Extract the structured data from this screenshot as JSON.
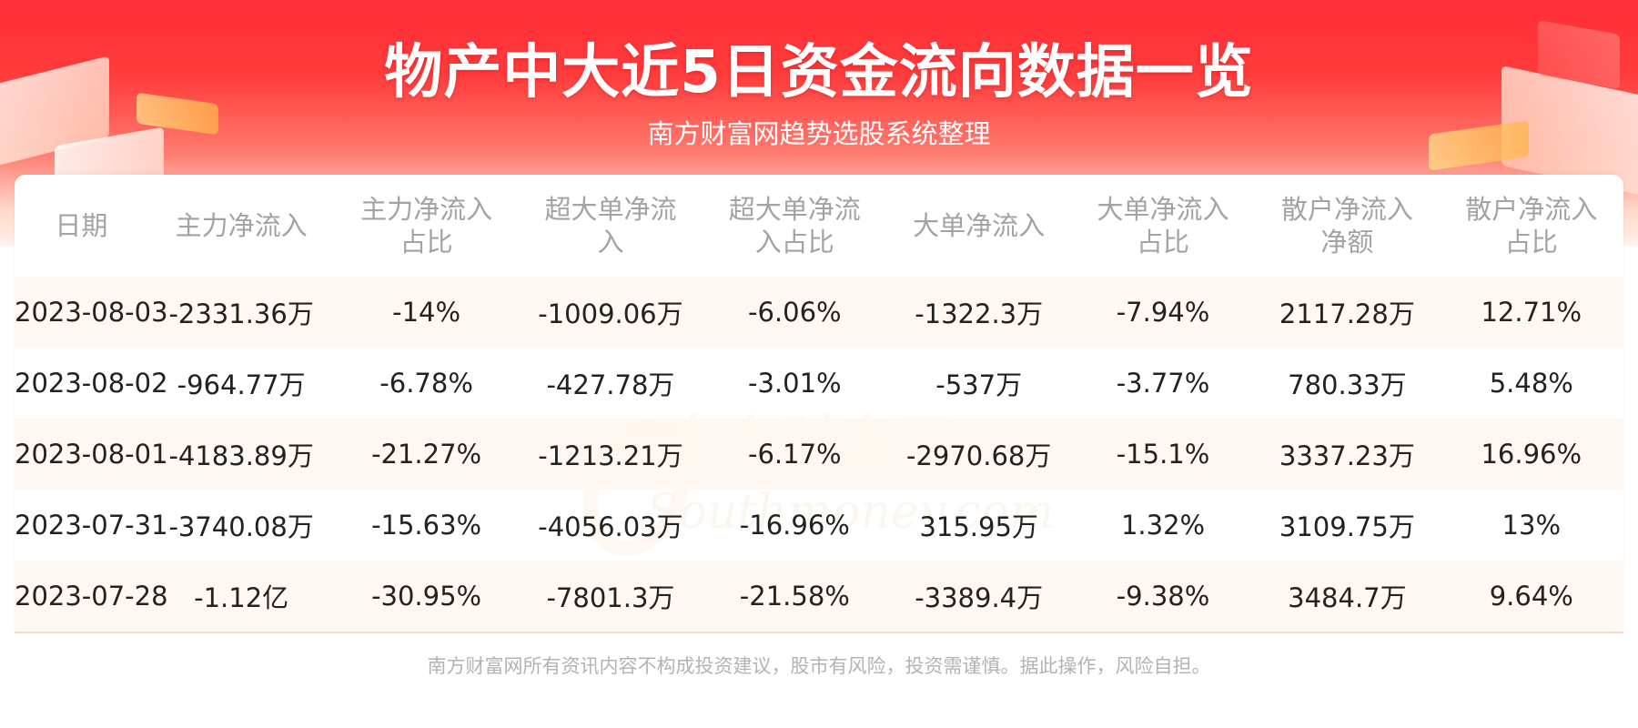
{
  "header": {
    "title": "物产中大近5日资金流向数据一览",
    "subtitle": "南方财富网趋势选股系统整理"
  },
  "table": {
    "columns": [
      "日期",
      "主力净流入",
      "主力净流入\n占比",
      "超大单净流\n入",
      "超大单净流\n入占比",
      "大单净流入",
      "大单净流入\n占比",
      "散户净流入\n净额",
      "散户净流入\n占比"
    ],
    "rows": [
      [
        "2023-08-03",
        "-2331.36万",
        "-14%",
        "-1009.06万",
        "-6.06%",
        "-1322.3万",
        "-7.94%",
        "2117.28万",
        "12.71%"
      ],
      [
        "2023-08-02",
        "-964.77万",
        "-6.78%",
        "-427.78万",
        "-3.01%",
        "-537万",
        "-3.77%",
        "780.33万",
        "5.48%"
      ],
      [
        "2023-08-01",
        "-4183.89万",
        "-21.27%",
        "-1213.21万",
        "-6.17%",
        "-2970.68万",
        "-15.1%",
        "3337.23万",
        "16.96%"
      ],
      [
        "2023-07-31",
        "-3740.08万",
        "-15.63%",
        "-4056.03万",
        "-16.96%",
        "315.95万",
        "1.32%",
        "3109.75万",
        "13%"
      ],
      [
        "2023-07-28",
        "-1.12亿",
        "-30.95%",
        "-7801.3万",
        "-21.58%",
        "-3389.4万",
        "-9.38%",
        "3484.7万",
        "9.64%"
      ]
    ]
  },
  "watermark": {
    "cn": "南方财富网",
    "en": "Southmoney.com"
  },
  "footer": {
    "disclaimer": "南方财富网所有资讯内容不构成投资建议，股市有风险，投资需谨慎。据此操作，风险自担。"
  },
  "colors": {
    "banner_red": "#ff2d37",
    "header_text": "#a3a3a3",
    "cell_text": "#222222",
    "row_tint": "#fff7f1"
  }
}
